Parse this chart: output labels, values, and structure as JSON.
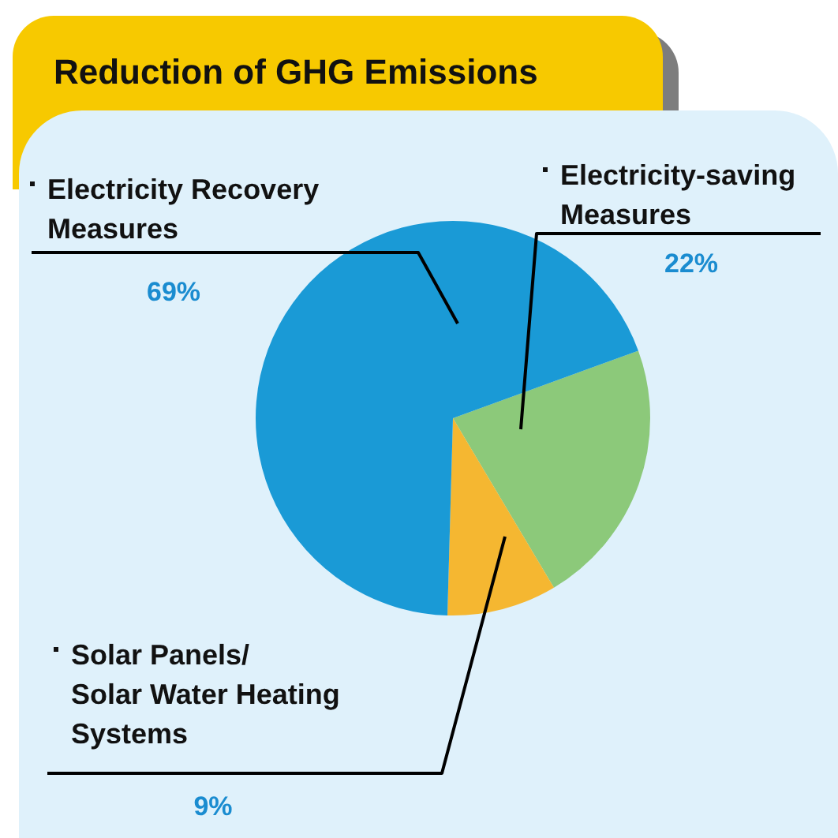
{
  "chart_data": {
    "type": "pie",
    "title": "Reduction of GHG Emissions",
    "categories": [
      "Electricity-saving Measures",
      "Solar Panels/ Solar Water Heating Systems",
      "Electricity Recovery Measures"
    ],
    "values": [
      22,
      9,
      69
    ],
    "colors": [
      "#8cc97a",
      "#f5b731",
      "#1a9ad6"
    ],
    "value_labels": [
      "22%",
      "9%",
      "69%"
    ],
    "legend": false
  }
}
